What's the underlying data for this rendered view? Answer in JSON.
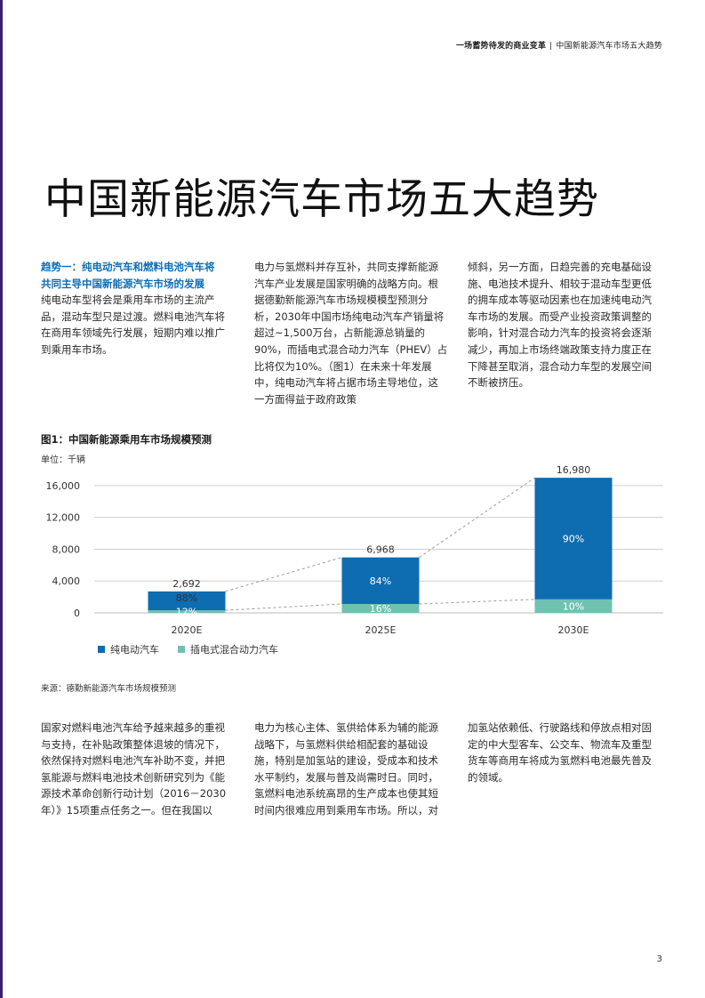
{
  "header": {
    "left": "一场蓄势待发的商业变革",
    "separator": "|",
    "right": "中国新能源汽车市场五大趋势"
  },
  "title": "中国新能源汽车市场五大趋势",
  "trend": {
    "heading_line1": "趋势一：纯电动汽车和燃料电池汽车将",
    "heading_line2": "共同主导中国新能源汽车市场的发展",
    "col1": "纯电动车型将会是乘用车市场的主流产品，混动车型只是过渡。燃料电池汽车将在商用车领域先行发展，短期内难以推广到乘用车市场。",
    "col2": "电力与氢燃料并存互补，共同支撑新能源汽车产业发展是国家明确的战略方向。根据德勤新能源汽车市场规模模型预测分析，2030年中国市场纯电动汽车产销量将超过~1,500万台，占新能源总销量的90%，而插电式混合动力汽车（PHEV）占比将仅为10%。（图1）在未来十年发展中，纯电动汽车将占据市场主导地位，这一方面得益于政府政策",
    "col3": "倾斜，另一方面，日趋完善的充电基础设施、电池技术提升、相较于混动车型更低的拥车成本等驱动因素也在加速纯电动汽车市场的发展。而受产业投资政策调整的影响，针对混合动力汽车的投资将会逐渐减少，再加上市场终端政策支持力度正在下降甚至取消，混合动力车型的发展空间不断被挤压。"
  },
  "figure": {
    "title": "图1：中国新能源乘用车市场规模预测",
    "unit": "单位：千辆",
    "source": "来源：德勤新能源汽车市场规模预测"
  },
  "chart_data": {
    "type": "bar",
    "stacked": true,
    "title": "图1：中国新能源乘用车市场规模预测",
    "ylabel": "单位：千辆",
    "categories": [
      "2020E",
      "2025E",
      "2030E"
    ],
    "totals": [
      2692,
      6968,
      16980
    ],
    "total_labels": [
      "2,692",
      "6,968",
      "16,980"
    ],
    "series": [
      {
        "name": "纯电动汽车",
        "share": [
          "88%",
          "84%",
          "90%"
        ],
        "color": "#0e6cb1"
      },
      {
        "name": "插电式混合动力汽车",
        "share": [
          "12%",
          "16%",
          "10%"
        ],
        "color": "#6fc2b0"
      }
    ],
    "ylim": [
      0,
      18000
    ],
    "yticks": [
      0,
      4000,
      8000,
      12000,
      16000
    ],
    "ytick_labels": [
      "0",
      "4,000",
      "8,000",
      "12,000",
      "16,000"
    ],
    "grid": true,
    "legend": "bottom-left",
    "trend_lines": "dashed"
  },
  "bottom": {
    "col1": "国家对燃料电池汽车给予越来越多的重视与支持，在补贴政策整体退坡的情况下，依然保持对燃料电池汽车补助不变，并把氢能源与燃料电池技术创新研究列为《能源技术革命创新行动计划（2016－2030年）》15项重点任务之一。但在我国以",
    "col2": "电力为核心主体、氢供给体系为辅的能源战略下，与氢燃料供给相配套的基础设施，特别是加氢站的建设，受成本和技术水平制约，发展与普及尚需时日。同时，氢燃料电池系统高昂的生产成本也使其短时间内很难应用到乘用车市场。所以，对",
    "col3": "加氢站依赖低、行驶路线和停放点相对固定的中大型客车、公交车、物流车及重型货车等商用车将成为氢燃料电池最先普及的领域。"
  },
  "page_number": "3"
}
